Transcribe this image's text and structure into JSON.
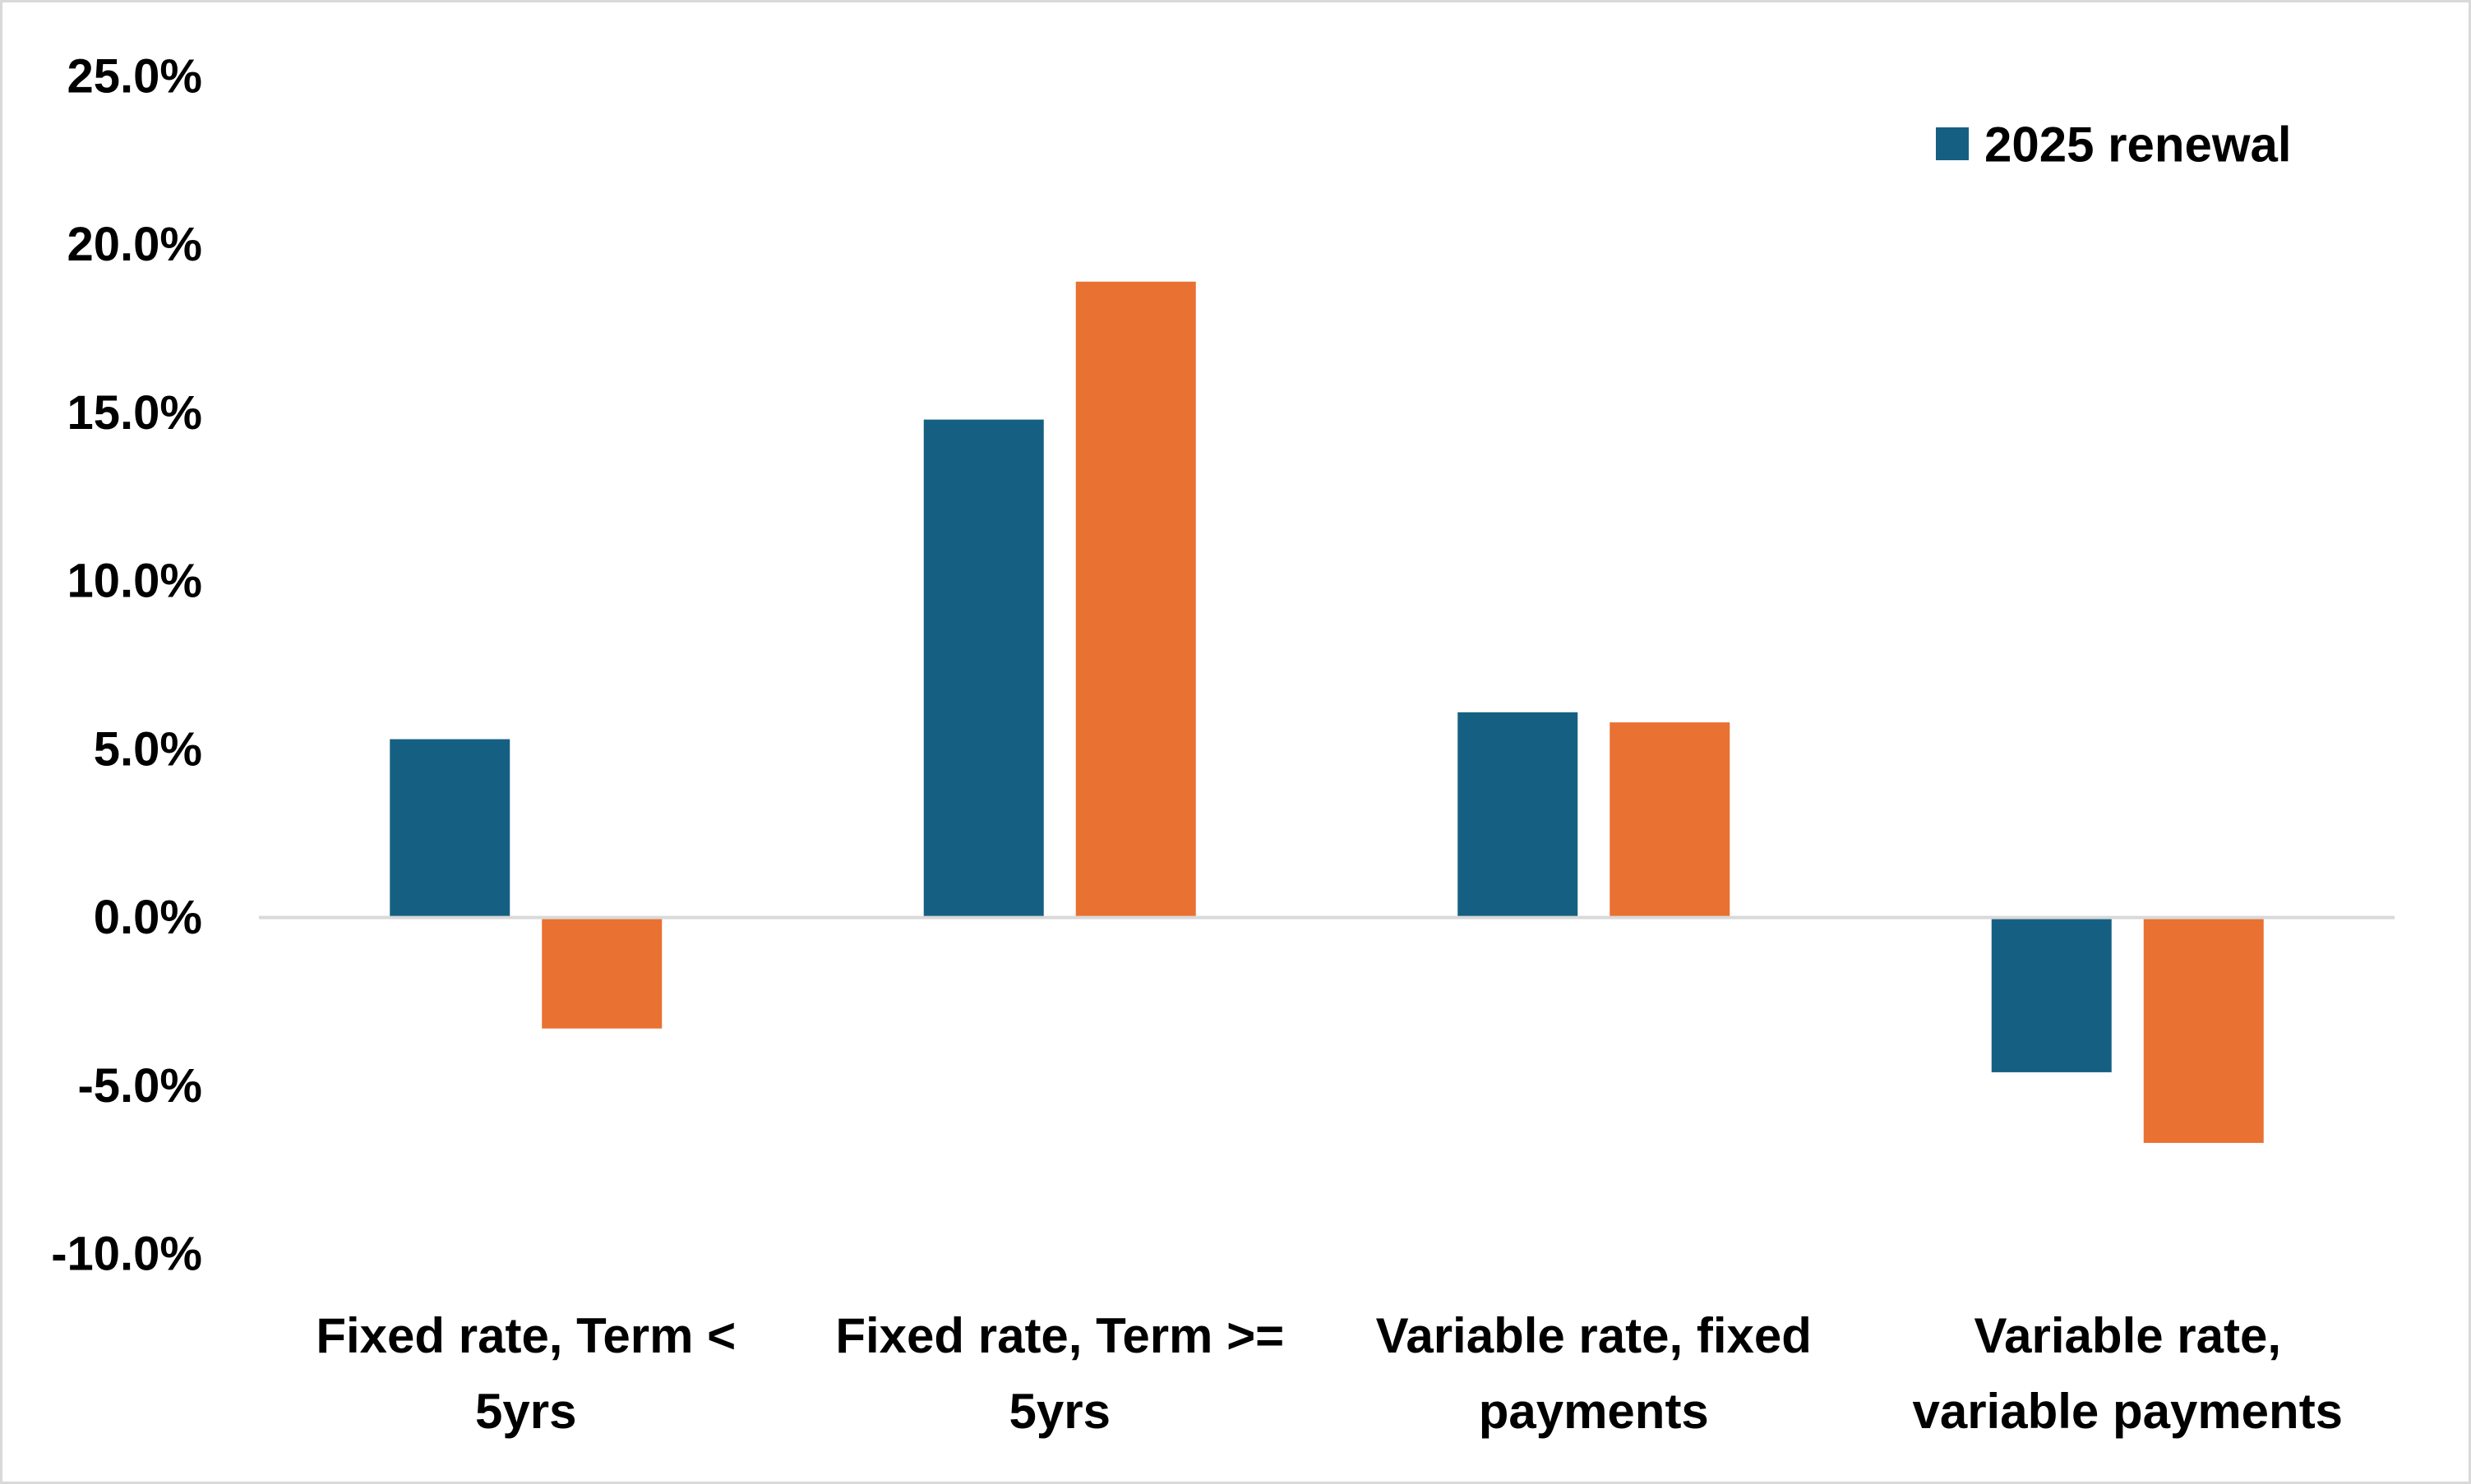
{
  "chart_data": {
    "type": "bar",
    "categories": [
      [
        "Fixed rate, Term <",
        "5yrs"
      ],
      [
        "Fixed rate, Term >=",
        "5yrs"
      ],
      [
        "Variable rate, fixed",
        "payments"
      ],
      [
        "Variable rate,",
        "variable payments"
      ]
    ],
    "series": [
      {
        "name": "2025 renewal",
        "color": "#156082",
        "values": [
          5.3,
          14.8,
          6.1,
          -4.6
        ]
      },
      {
        "color": "#e97132",
        "values": [
          -3.3,
          18.9,
          5.8,
          -6.7
        ]
      }
    ],
    "ylim": [
      -10,
      25
    ],
    "yticks": [
      25,
      20,
      15,
      10,
      5,
      0,
      -5,
      -10
    ],
    "ytick_labels": [
      "25.0%",
      "20.0%",
      "15.0%",
      "10.0%",
      "5.0%",
      "0.0%",
      "-5.0%",
      "-10.0%"
    ],
    "zero_line_color": "#d9d9d9",
    "legend_position": "top-right",
    "grid": false
  }
}
